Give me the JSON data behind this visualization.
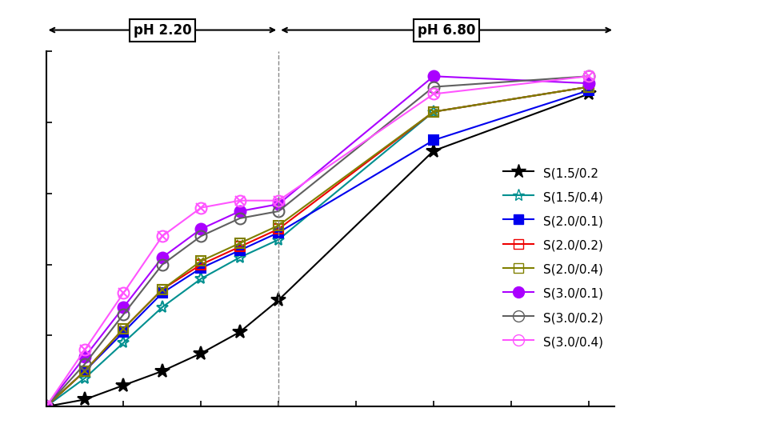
{
  "x_values": [
    0,
    30,
    60,
    90,
    120,
    150,
    180,
    300,
    420
  ],
  "ph_switch_x": 180,
  "ph_label_1": "pH 2.20",
  "ph_label_2": "pH 6.80",
  "labels": [
    "S(1.5/0.2",
    "S(1.5/0.4)",
    "S(2.0/0.1)",
    "S(2.0/0.2)",
    "S(2.0/0.4)",
    "S(3.0/0.1)",
    "S(3.0/0.2)",
    "S(3.0/0.4)"
  ],
  "colors": [
    "#000000",
    "#009090",
    "#0000EE",
    "#EE0000",
    "#808000",
    "#AA00FF",
    "#606060",
    "#FF55FF"
  ],
  "markers": [
    "*",
    "*",
    "s",
    "s",
    "s",
    "o",
    "o",
    "o"
  ],
  "filled": [
    true,
    false,
    true,
    false,
    false,
    true,
    false,
    false
  ],
  "cross_overlay": [
    false,
    false,
    false,
    false,
    true,
    false,
    false,
    true
  ],
  "marker_sizes": [
    13,
    11,
    8,
    8,
    8,
    10,
    10,
    10
  ],
  "y_data": [
    [
      0,
      2,
      6,
      10,
      15,
      21,
      30,
      72,
      88
    ],
    [
      0,
      8,
      18,
      28,
      36,
      42,
      47,
      83,
      90
    ],
    [
      0,
      10,
      21,
      32,
      39,
      44,
      49,
      75,
      89
    ],
    [
      0,
      10,
      22,
      33,
      40,
      45,
      50,
      83,
      90
    ],
    [
      0,
      10,
      22,
      33,
      41,
      46,
      51,
      83,
      90
    ],
    [
      0,
      14,
      28,
      42,
      50,
      55,
      57,
      93,
      91
    ],
    [
      0,
      12,
      26,
      40,
      48,
      53,
      55,
      90,
      93
    ],
    [
      0,
      16,
      32,
      48,
      56,
      58,
      58,
      88,
      93
    ]
  ],
  "xlim": [
    0,
    440
  ],
  "ylim": [
    0,
    100
  ]
}
